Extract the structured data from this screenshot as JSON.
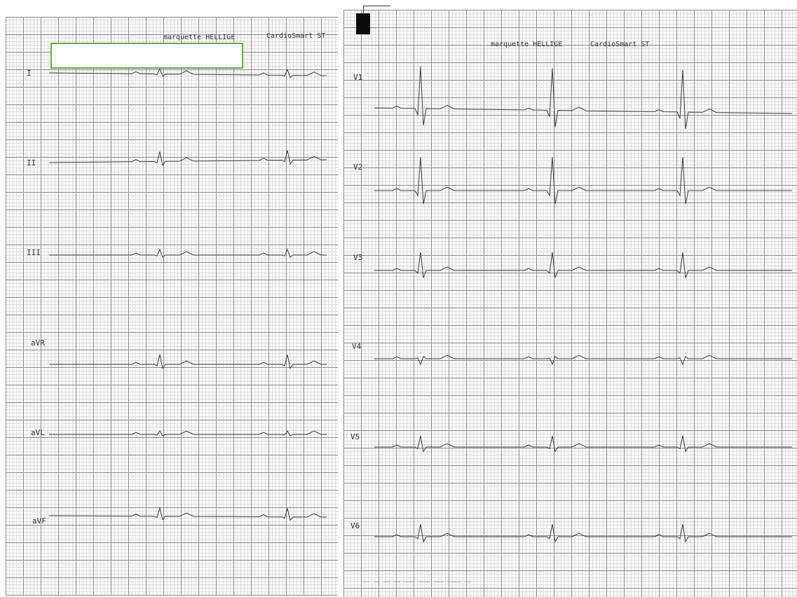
{
  "header_left": {
    "device": "marquette HELLIGE",
    "software": "CardioSmart ST"
  },
  "header_right": {
    "device": "marquette HELLIGE",
    "software": "CardioSmart ST"
  },
  "leads_left": [
    {
      "label": "I"
    },
    {
      "label": "II"
    },
    {
      "label": "III"
    },
    {
      "label": "aVR"
    },
    {
      "label": "aVL"
    },
    {
      "label": "aVF"
    }
  ],
  "leads_right": [
    {
      "label": "V1"
    },
    {
      "label": "V2"
    },
    {
      "label": "V3"
    },
    {
      "label": "V4"
    },
    {
      "label": "V5"
    },
    {
      "label": "V6"
    }
  ],
  "trace_color": "#3a3a3a",
  "grid_major_color": "#8a8a8a",
  "redaction_border_color": "#6aa84f"
}
